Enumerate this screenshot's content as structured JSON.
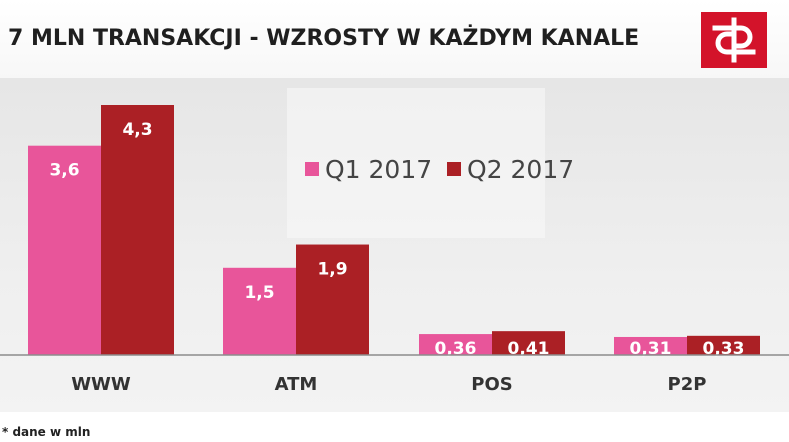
{
  "header": {
    "title": "7 MLN TRANSAKCJI - WZROSTY W KAŻDYM KANALE"
  },
  "logo": {
    "icon": "bank-logo-icon",
    "color": "#d3132a"
  },
  "footnote": "* dane w mln",
  "chart_data": {
    "type": "bar",
    "title": "",
    "categories": [
      "WWW",
      "ATM",
      "POS",
      "P2P"
    ],
    "series": [
      {
        "name": "Q1 2017",
        "color": "#e8559a",
        "values": [
          3.6,
          1.5,
          0.36,
          0.31
        ],
        "labels": [
          "3,6",
          "1,5",
          "0,36",
          "0,31"
        ]
      },
      {
        "name": "Q2 2017",
        "color": "#ab2025",
        "values": [
          4.3,
          1.9,
          0.41,
          0.33
        ],
        "labels": [
          "4,3",
          "1,9",
          "0,41",
          "0,33"
        ]
      }
    ],
    "xlabel": "",
    "ylabel": "",
    "ylim": [
      0,
      4.3
    ],
    "grid": false,
    "legend_position": "top-center"
  }
}
